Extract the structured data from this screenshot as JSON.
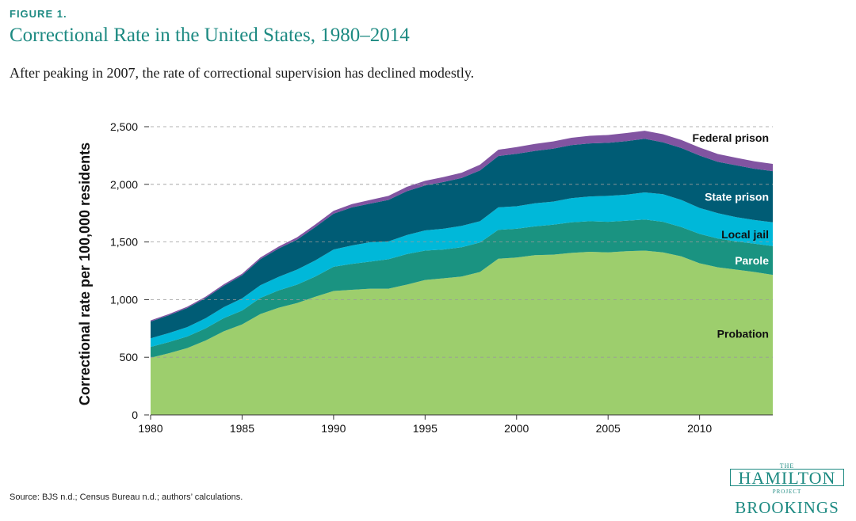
{
  "figure": {
    "label": "FIGURE 1.",
    "title": "Correctional Rate in the United States, 1980–2014",
    "subtitle": "After peaking in 2007, the rate of correctional supervision has declined modestly.",
    "source": "Source: BJS n.d.; Census Bureau n.d.; authors’ calculations."
  },
  "logo": {
    "the": "THE",
    "hamilton": "HAMILTON",
    "project": "PROJECT",
    "brookings": "BROOKINGS"
  },
  "chart_data": {
    "type": "area",
    "stacked": true,
    "title": "",
    "xlabel": "",
    "ylabel": "Correctional rate per 100,000 residents",
    "xlim": [
      1980,
      2014
    ],
    "ylim": [
      0,
      2500
    ],
    "x_ticks": [
      1980,
      1985,
      1990,
      1995,
      2000,
      2005,
      2010
    ],
    "y_ticks": [
      0,
      500,
      1000,
      1500,
      2000,
      2500
    ],
    "grid": "horizontal-dashed",
    "x": [
      1980,
      1981,
      1982,
      1983,
      1984,
      1985,
      1986,
      1987,
      1988,
      1989,
      1990,
      1991,
      1992,
      1993,
      1994,
      1995,
      1996,
      1997,
      1998,
      1999,
      2000,
      2001,
      2002,
      2003,
      2004,
      2005,
      2006,
      2007,
      2008,
      2009,
      2010,
      2011,
      2012,
      2013,
      2014
    ],
    "series": [
      {
        "name": "Probation",
        "color": "#9dce6d",
        "values": [
          495,
          535,
          580,
          645,
          725,
          785,
          875,
          930,
          970,
          1025,
          1075,
          1085,
          1095,
          1095,
          1130,
          1170,
          1185,
          1200,
          1240,
          1355,
          1365,
          1385,
          1390,
          1405,
          1415,
          1410,
          1420,
          1425,
          1410,
          1375,
          1315,
          1280,
          1260,
          1240,
          1215
        ]
      },
      {
        "name": "Parole",
        "color": "#1a9381",
        "values": [
          95,
          97,
          100,
          105,
          115,
          120,
          140,
          150,
          160,
          175,
          210,
          225,
          235,
          255,
          265,
          255,
          250,
          255,
          255,
          250,
          250,
          250,
          260,
          265,
          265,
          265,
          265,
          270,
          265,
          255,
          255,
          250,
          245,
          245,
          250
        ]
      },
      {
        "name": "Local jail",
        "color": "#00b8d9",
        "values": [
          75,
          78,
          82,
          88,
          95,
          105,
          110,
          118,
          130,
          140,
          150,
          160,
          168,
          155,
          165,
          175,
          180,
          185,
          185,
          195,
          195,
          200,
          200,
          210,
          215,
          225,
          225,
          235,
          240,
          235,
          225,
          220,
          210,
          205,
          205
        ]
      },
      {
        "name": "State prison",
        "color": "#005c75",
        "values": [
          145,
          155,
          165,
          175,
          185,
          200,
          225,
          245,
          260,
          290,
          310,
          330,
          335,
          360,
          380,
          390,
          405,
          415,
          440,
          445,
          455,
          455,
          460,
          460,
          460,
          460,
          465,
          465,
          450,
          450,
          455,
          445,
          450,
          445,
          445
        ]
      },
      {
        "name": "Federal prison",
        "color": "#8154a1",
        "values": [
          10,
          10,
          11,
          12,
          13,
          14,
          15,
          17,
          20,
          22,
          25,
          28,
          32,
          35,
          38,
          40,
          43,
          46,
          50,
          55,
          58,
          60,
          62,
          64,
          66,
          68,
          70,
          70,
          70,
          70,
          70,
          68,
          66,
          64,
          62
        ]
      }
    ]
  }
}
